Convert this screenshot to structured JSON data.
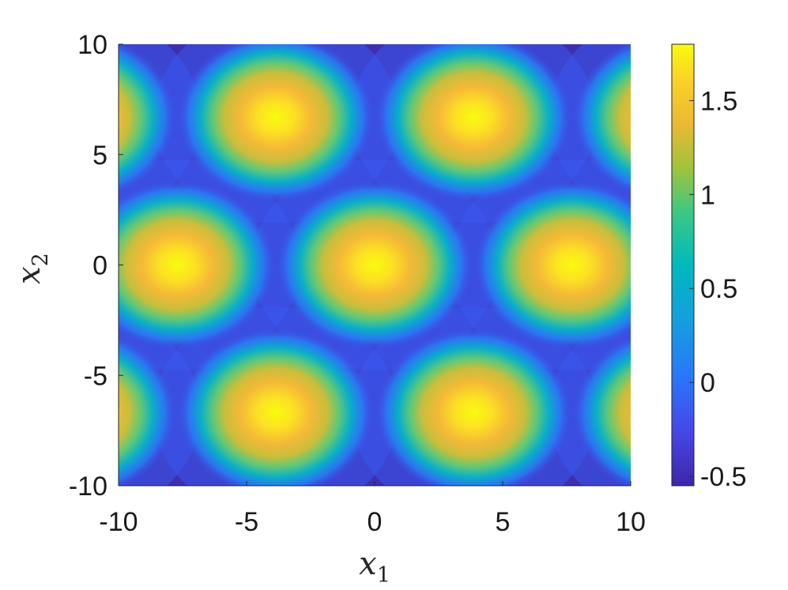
{
  "chart_data": {
    "type": "heatmap",
    "title": "",
    "xlabel": {
      "base": "x",
      "sub": "1"
    },
    "ylabel": {
      "base": "x",
      "sub": "2"
    },
    "xlim": [
      -10,
      10
    ],
    "ylim": [
      -10,
      10
    ],
    "xticks": [
      -10,
      -5,
      0,
      5,
      10
    ],
    "yticks": [
      -10,
      -5,
      0,
      5,
      10
    ],
    "colorbar": {
      "colormap": "parula",
      "clim": [
        -0.55,
        1.8
      ],
      "ticks": [
        -0.5,
        0,
        0.5,
        1,
        1.5
      ]
    },
    "field": {
      "description": "hexagonal lattice of peaks",
      "lattice_constant": 7.72,
      "peak_centers": [
        [
          0,
          0
        ],
        [
          7.72,
          0
        ],
        [
          -7.72,
          0
        ],
        [
          3.86,
          6.69
        ],
        [
          -3.86,
          6.69
        ],
        [
          3.86,
          -6.69
        ],
        [
          -3.86,
          -6.69
        ],
        [
          11.58,
          6.69
        ],
        [
          -11.58,
          6.69
        ],
        [
          11.58,
          -6.69
        ],
        [
          -11.58,
          -6.69
        ]
      ],
      "peak_value": 1.8,
      "min_value": -0.55
    },
    "grid": false
  }
}
